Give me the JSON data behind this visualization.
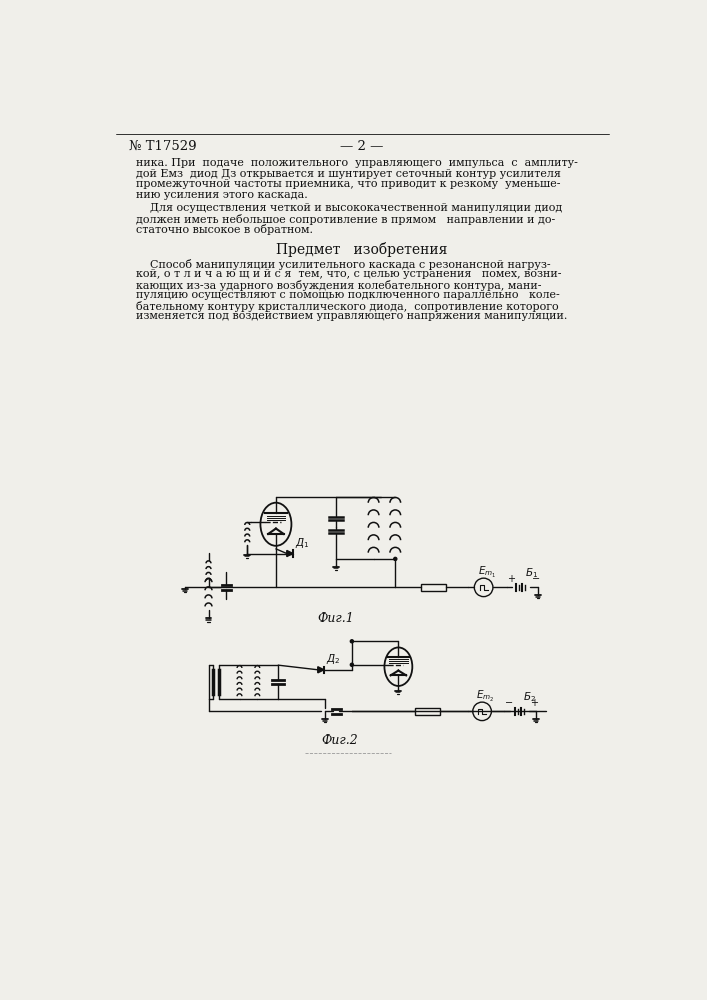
{
  "patent_number": "№ T17529",
  "page_number": "— 2 —",
  "background_color": "#f0efea",
  "text_color": "#111111",
  "line_color": "#111111",
  "paragraph1_lines": [
    "ника. При  подаче  положительного  управляющего  импульса  с  амплиту-",
    "дой Емз  диод Дз открывается и шунтирует сеточный контур усилителя",
    "промежуточной частоты приемника, что приводит к резкому  уменьше-",
    "нию усиления этого каскада."
  ],
  "paragraph2_lines": [
    "    Для осуществления четкой и высококачественной манипуляции диод",
    "должен иметь небольшое сопротивление в прямом   направлении и до-",
    "статочно высокое в обратном."
  ],
  "section_title": "Предмет   изобретения",
  "claim_lines": [
    "    Способ манипуляции усилительного каскада с резонансной нагруз-",
    "кой, о т л и ч а ю щ и й с я  тем, что, с целью устранения   помех, возни-",
    "кающих из-за ударного возбуждения колебательного контура, мани-",
    "пуляцию осуществляют с помощью подключенного параллельно   коле-",
    "бательному контуру кристаллического диода,  сопротивление которого",
    "изменяется под воздействием управляющего напряжения манипуляции."
  ],
  "fig1_caption": "Фиг.1",
  "fig2_caption": "Фиг.2"
}
